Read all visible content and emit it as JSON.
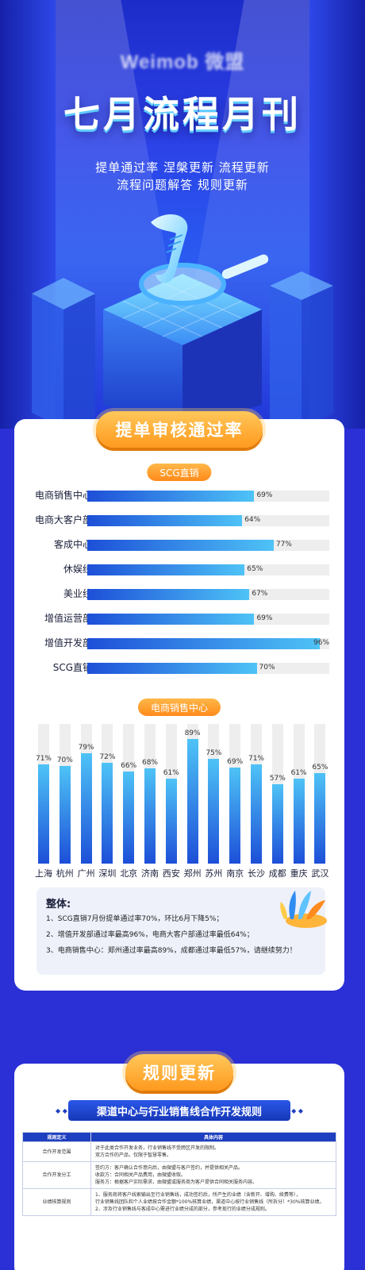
{
  "hero": {
    "brand": "Weimob 微盟",
    "title": "七月流程月刊",
    "subtitle_line1": "提单通过率 涅槃更新 流程更新",
    "subtitle_line2": "流程问题解答 规则更新"
  },
  "section1": {
    "title": "提单审核通过率",
    "pill1": "SCG直销",
    "pill2": "电商销售中心",
    "colors": {
      "bar_start": "#1d4fd8",
      "bar_end": "#4ec3f6",
      "track": "#eeeeee",
      "accent": "#ff9a1e"
    }
  },
  "chart_data": [
    {
      "type": "bar",
      "orientation": "horizontal",
      "title": "SCG直销",
      "categories": [
        "电商销售中心",
        "电商大客户部",
        "客成中心",
        "休娱线",
        "美业线",
        "增值运营部",
        "增值开发部",
        "SCG直销"
      ],
      "values": [
        69,
        64,
        77,
        65,
        67,
        69,
        96,
        70
      ],
      "labels": [
        "69%",
        "64%",
        "77%",
        "65%",
        "67%",
        "69%",
        "96%",
        "70%"
      ],
      "xlim": [
        0,
        100
      ]
    },
    {
      "type": "bar",
      "orientation": "vertical",
      "title": "电商销售中心",
      "categories": [
        "上海",
        "杭州",
        "广州",
        "深圳",
        "北京",
        "济南",
        "西安",
        "郑州",
        "苏州",
        "南京",
        "长沙",
        "成都",
        "重庆",
        "武汉"
      ],
      "values": [
        71,
        70,
        79,
        72,
        66,
        68,
        61,
        89,
        75,
        69,
        71,
        57,
        61,
        65
      ],
      "labels": [
        "71%",
        "70%",
        "79%",
        "72%",
        "66%",
        "68%",
        "61%",
        "89%",
        "75%",
        "69%",
        "71%",
        "57%",
        "61%",
        "65%"
      ],
      "ylim": [
        0,
        100
      ]
    }
  ],
  "summary": {
    "heading": "整体:",
    "line1": "1、SCG直销7月份提单通过率70%，环比6月下降5%；",
    "line2": "2、增值开发部通过率最高96%，电商大客户部通过率最低64%；",
    "line3": "3、电商销售中心：郑州通过率最高89%，成都通过率最低57%，请继续努力！"
  },
  "section2": {
    "title": "规则更新",
    "banner": "渠道中心与行业销售线合作开发规则",
    "table": {
      "headers": [
        "规则定义",
        "具体内容"
      ],
      "rows": [
        {
          "key": "合作开发范围",
          "lines": [
            "对于此类合作开发业务，行业销售线不受跨区开发的限制。",
            "双方合作的产品，仅限于智慧零售。"
          ]
        },
        {
          "key": "合作开发分工",
          "lines": [
            "签约方：客户确认合作意向后，由微盟与客户签约，并提供相关产品。",
            "收款方：合同相关产品费用，由微盟收取。",
            "服务方：根据客户实际需求，由微盟或服务商为客户提供合同相关服务内容。"
          ]
        },
        {
          "key": "业绩核算规则",
          "lines": [
            "1、服务商将客户线索输出至行业销售线，成功签约后，所产生的业绩（含新开、增购、续费等），",
            "行业销售线团队和个人业绩按合作金额*100%核算业绩，渠道中心按行业销售线（所拆分）*30%核算业绩。",
            "2、涉及行业销售线与客成中心需进行业绩分成的部分，参考现行的业绩分成规则。"
          ]
        }
      ]
    }
  }
}
